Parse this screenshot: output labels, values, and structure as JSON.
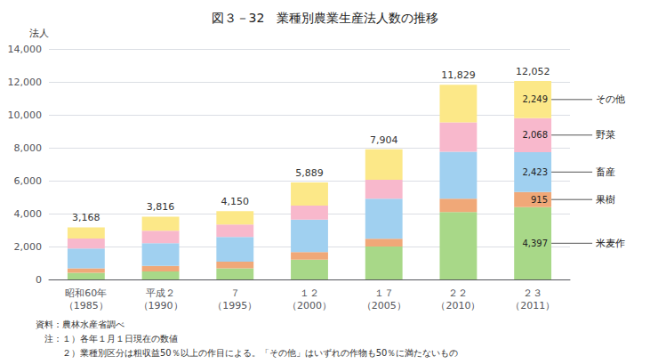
{
  "chart_data": {
    "type": "bar",
    "title": "図３－32　業種別農業生産法人数の推移",
    "ylabel": "法人",
    "stacked": true,
    "grid": true,
    "categories": [
      "昭和60年\n（1985）",
      "平成２\n（1990）",
      "７\n（1995）",
      "１２\n（2000）",
      "１７\n（2005）",
      "２２\n（2010）",
      "２３\n（2011）"
    ],
    "series": [
      {
        "name": "米麦作",
        "color": "#a8d888",
        "values": [
          400,
          480,
          680,
          1200,
          2000,
          4100,
          4397
        ]
      },
      {
        "name": "果樹",
        "color": "#f0a878",
        "values": [
          280,
          340,
          400,
          460,
          470,
          800,
          915
        ]
      },
      {
        "name": "畜産",
        "color": "#a0d0f0",
        "values": [
          1200,
          1380,
          1500,
          1980,
          2430,
          2860,
          2423
        ]
      },
      {
        "name": "野菜",
        "color": "#f8b8cc",
        "values": [
          600,
          760,
          760,
          850,
          1160,
          1780,
          2068
        ]
      },
      {
        "name": "その他",
        "color": "#fce888",
        "values": [
          688,
          856,
          810,
          1399,
          1844,
          2289,
          2249
        ]
      }
    ],
    "totals": [
      3168,
      3816,
      4150,
      5889,
      7904,
      11829,
      12052
    ],
    "total_labels": [
      "3,168",
      "3,816",
      "4,150",
      "5,889",
      "7,904",
      "11,829",
      "12,052"
    ],
    "annotations": [
      {
        "category": "２３\n（2011）",
        "series": "その他",
        "value": 2249,
        "label": "2,249",
        "text": "その他"
      },
      {
        "category": "２３\n（2011）",
        "series": "野菜",
        "value": 2068,
        "label": "2,068",
        "text": "野菜"
      },
      {
        "category": "２３\n（2011）",
        "series": "畜産",
        "value": 2423,
        "label": "2,423",
        "text": "畜産"
      },
      {
        "category": "２３\n（2011）",
        "series": "果樹",
        "value": 915,
        "label": "915",
        "text": "果樹"
      },
      {
        "category": "２３\n（2011）",
        "series": "米麦作",
        "value": 4397,
        "label": "4,397",
        "text": "米麦作"
      }
    ],
    "ylim": [
      0,
      14000
    ],
    "yticks": [
      0,
      {
        "value": 2000,
        "label": "2,000"
      },
      {
        "value": 4000,
        "label": "4,000"
      },
      {
        "value": 6000,
        "label": "6,000"
      },
      {
        "value": 8000,
        "label": "8,000"
      },
      {
        "value": 10000,
        "label": "10,000"
      },
      {
        "value": 12000,
        "label": "12,000"
      },
      {
        "value": 14000,
        "label": "14,000"
      }
    ],
    "notes": [
      "資料：農林水産省調べ",
      "　注：１）各年１月１日現在の数値",
      "　　　２）業種別区分は粗収益50％以上の作目による。「その他」はいずれの作物も50％に満たないもの"
    ]
  }
}
